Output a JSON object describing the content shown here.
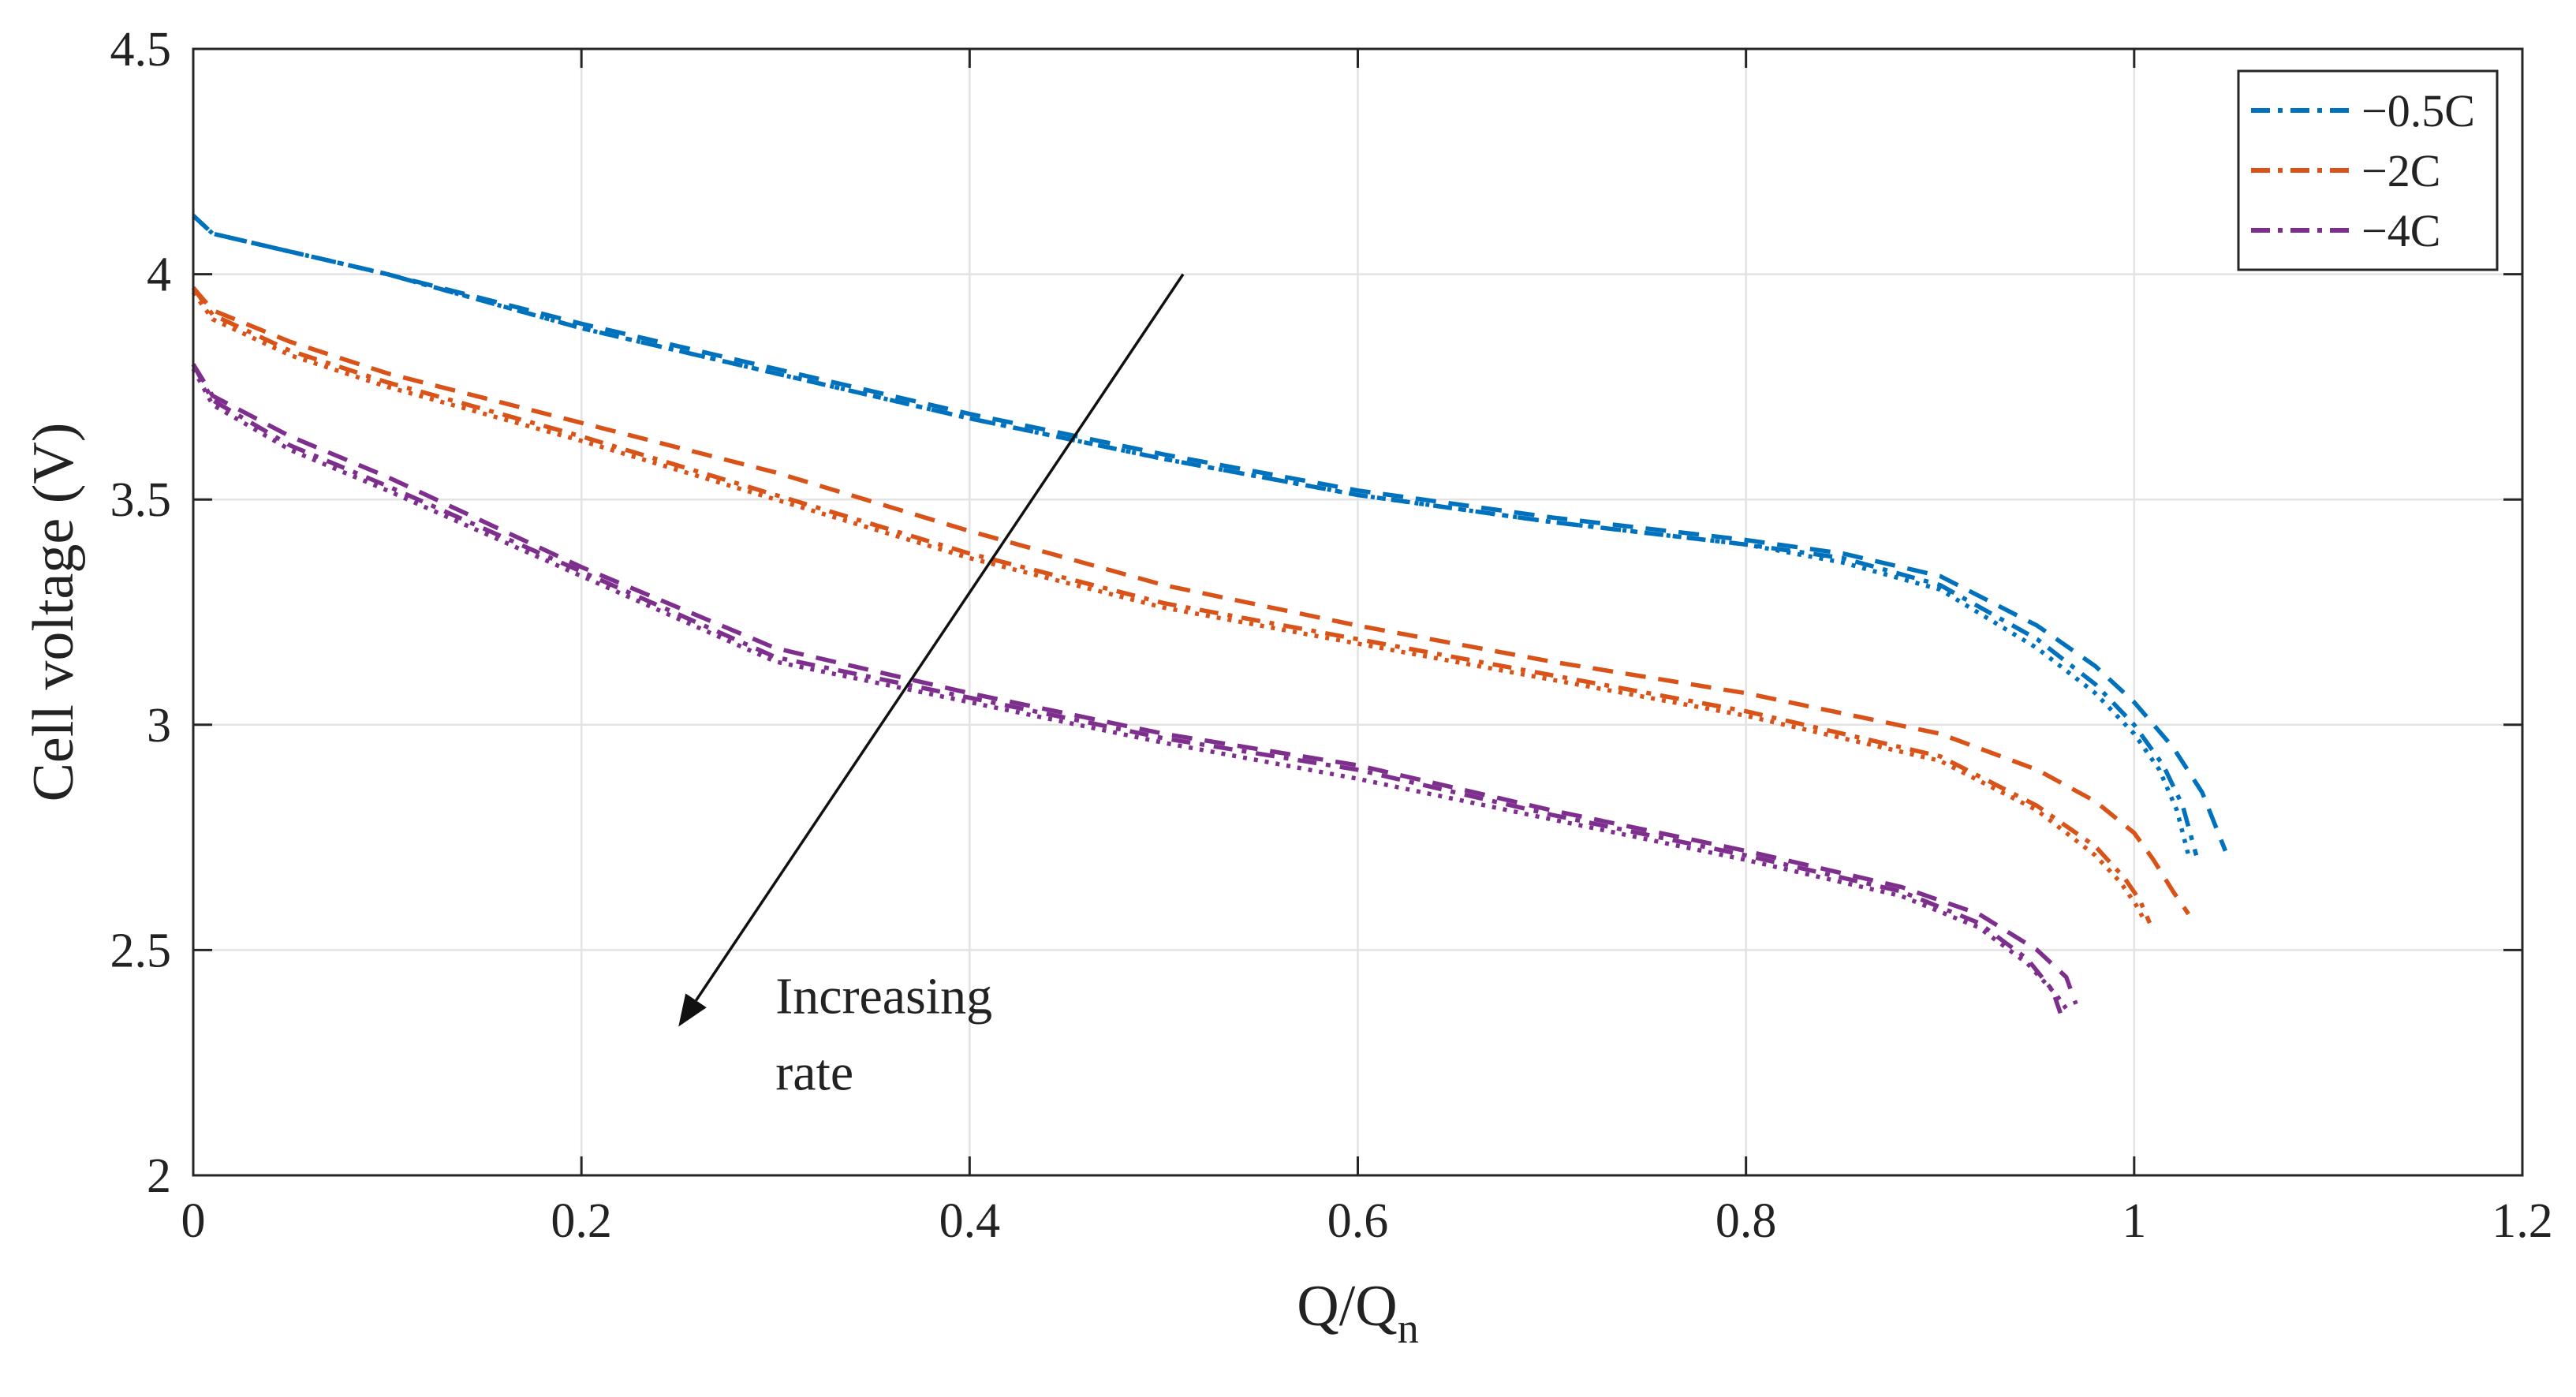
{
  "chart_data": {
    "type": "line",
    "xlabel": "Q/Q",
    "xlabel_subscript": "n",
    "ylabel": "Cell voltage (V)",
    "xlim": [
      0,
      1.2
    ],
    "ylim": [
      2,
      4.5
    ],
    "xticks": [
      0,
      0.2,
      0.4,
      0.6,
      0.8,
      1,
      1.2
    ],
    "xtick_labels": [
      "0",
      "0.2",
      "0.4",
      "0.6",
      "0.8",
      "1",
      "1.2"
    ],
    "yticks": [
      2,
      2.5,
      3,
      3.5,
      4,
      4.5
    ],
    "ytick_labels": [
      "2",
      "2.5",
      "3",
      "3.5",
      "4",
      "4.5"
    ],
    "grid": true,
    "legend_position": "top-right",
    "annotation": {
      "lines": [
        "Increasing",
        "rate"
      ],
      "arrow_from": [
        0.51,
        4.0
      ],
      "arrow_to": [
        0.25,
        2.33
      ]
    },
    "series": [
      {
        "name": "−0.5C",
        "color": "#0072bd",
        "variants": [
          {
            "style": "dashed",
            "points": [
              [
                0,
                4.13
              ],
              [
                0.01,
                4.09
              ],
              [
                0.05,
                4.05
              ],
              [
                0.1,
                4.0
              ],
              [
                0.2,
                3.89
              ],
              [
                0.3,
                3.79
              ],
              [
                0.4,
                3.69
              ],
              [
                0.5,
                3.6
              ],
              [
                0.6,
                3.52
              ],
              [
                0.7,
                3.46
              ],
              [
                0.8,
                3.41
              ],
              [
                0.85,
                3.38
              ],
              [
                0.9,
                3.33
              ],
              [
                0.95,
                3.22
              ],
              [
                0.98,
                3.13
              ],
              [
                1.0,
                3.05
              ],
              [
                1.02,
                2.95
              ],
              [
                1.035,
                2.85
              ],
              [
                1.047,
                2.72
              ]
            ]
          },
          {
            "style": "dash-dot",
            "points": [
              [
                0,
                4.13
              ],
              [
                0.01,
                4.09
              ],
              [
                0.05,
                4.05
              ],
              [
                0.1,
                4.0
              ],
              [
                0.2,
                3.88
              ],
              [
                0.3,
                3.78
              ],
              [
                0.4,
                3.68
              ],
              [
                0.5,
                3.59
              ],
              [
                0.6,
                3.51
              ],
              [
                0.7,
                3.45
              ],
              [
                0.8,
                3.4
              ],
              [
                0.85,
                3.37
              ],
              [
                0.9,
                3.31
              ],
              [
                0.95,
                3.19
              ],
              [
                0.98,
                3.09
              ],
              [
                1.0,
                3.0
              ],
              [
                1.015,
                2.91
              ],
              [
                1.025,
                2.82
              ],
              [
                1.032,
                2.71
              ]
            ]
          },
          {
            "style": "dotted",
            "points": [
              [
                0,
                4.13
              ],
              [
                0.01,
                4.09
              ],
              [
                0.05,
                4.05
              ],
              [
                0.1,
                4.0
              ],
              [
                0.2,
                3.88
              ],
              [
                0.3,
                3.78
              ],
              [
                0.4,
                3.68
              ],
              [
                0.5,
                3.59
              ],
              [
                0.6,
                3.51
              ],
              [
                0.7,
                3.45
              ],
              [
                0.8,
                3.4
              ],
              [
                0.85,
                3.36
              ],
              [
                0.9,
                3.3
              ],
              [
                0.95,
                3.17
              ],
              [
                0.98,
                3.07
              ],
              [
                1.0,
                2.98
              ],
              [
                1.013,
                2.9
              ],
              [
                1.022,
                2.81
              ],
              [
                1.028,
                2.71
              ]
            ]
          }
        ]
      },
      {
        "name": "−2C",
        "color": "#d95319",
        "variants": [
          {
            "style": "dashed",
            "points": [
              [
                0,
                3.97
              ],
              [
                0.01,
                3.92
              ],
              [
                0.05,
                3.85
              ],
              [
                0.1,
                3.78
              ],
              [
                0.2,
                3.67
              ],
              [
                0.3,
                3.56
              ],
              [
                0.4,
                3.43
              ],
              [
                0.5,
                3.31
              ],
              [
                0.6,
                3.22
              ],
              [
                0.7,
                3.14
              ],
              [
                0.8,
                3.07
              ],
              [
                0.9,
                2.98
              ],
              [
                0.95,
                2.9
              ],
              [
                0.98,
                2.83
              ],
              [
                1.0,
                2.76
              ],
              [
                1.01,
                2.7
              ],
              [
                1.02,
                2.63
              ],
              [
                1.028,
                2.58
              ]
            ]
          },
          {
            "style": "dash-dot",
            "points": [
              [
                0,
                3.97
              ],
              [
                0.01,
                3.91
              ],
              [
                0.05,
                3.83
              ],
              [
                0.1,
                3.76
              ],
              [
                0.2,
                3.64
              ],
              [
                0.3,
                3.51
              ],
              [
                0.4,
                3.38
              ],
              [
                0.5,
                3.27
              ],
              [
                0.6,
                3.19
              ],
              [
                0.7,
                3.11
              ],
              [
                0.8,
                3.03
              ],
              [
                0.9,
                2.93
              ],
              [
                0.95,
                2.82
              ],
              [
                0.98,
                2.73
              ],
              [
                0.995,
                2.66
              ],
              [
                1.003,
                2.61
              ],
              [
                1.008,
                2.56
              ]
            ]
          },
          {
            "style": "dotted",
            "points": [
              [
                0,
                3.96
              ],
              [
                0.01,
                3.9
              ],
              [
                0.05,
                3.82
              ],
              [
                0.1,
                3.75
              ],
              [
                0.2,
                3.63
              ],
              [
                0.3,
                3.5
              ],
              [
                0.4,
                3.37
              ],
              [
                0.5,
                3.26
              ],
              [
                0.6,
                3.18
              ],
              [
                0.7,
                3.1
              ],
              [
                0.8,
                3.02
              ],
              [
                0.9,
                2.92
              ],
              [
                0.95,
                2.81
              ],
              [
                0.98,
                2.71
              ],
              [
                0.993,
                2.65
              ],
              [
                1.001,
                2.6
              ],
              [
                1.006,
                2.56
              ]
            ]
          }
        ]
      },
      {
        "name": "−4C",
        "color": "#7e2f8e",
        "variants": [
          {
            "style": "dashed",
            "points": [
              [
                0,
                3.8
              ],
              [
                0.01,
                3.73
              ],
              [
                0.05,
                3.64
              ],
              [
                0.1,
                3.55
              ],
              [
                0.2,
                3.35
              ],
              [
                0.3,
                3.17
              ],
              [
                0.4,
                3.07
              ],
              [
                0.5,
                2.98
              ],
              [
                0.6,
                2.91
              ],
              [
                0.7,
                2.81
              ],
              [
                0.8,
                2.72
              ],
              [
                0.88,
                2.64
              ],
              [
                0.92,
                2.58
              ],
              [
                0.95,
                2.5
              ],
              [
                0.965,
                2.44
              ],
              [
                0.97,
                2.38
              ]
            ]
          },
          {
            "style": "dash-dot",
            "points": [
              [
                0,
                3.8
              ],
              [
                0.01,
                3.72
              ],
              [
                0.05,
                3.62
              ],
              [
                0.1,
                3.53
              ],
              [
                0.2,
                3.34
              ],
              [
                0.3,
                3.15
              ],
              [
                0.4,
                3.06
              ],
              [
                0.5,
                2.97
              ],
              [
                0.6,
                2.9
              ],
              [
                0.7,
                2.8
              ],
              [
                0.8,
                2.71
              ],
              [
                0.88,
                2.63
              ],
              [
                0.92,
                2.56
              ],
              [
                0.945,
                2.48
              ],
              [
                0.958,
                2.41
              ],
              [
                0.962,
                2.36
              ]
            ]
          },
          {
            "style": "dotted",
            "points": [
              [
                0,
                3.79
              ],
              [
                0.01,
                3.71
              ],
              [
                0.05,
                3.61
              ],
              [
                0.1,
                3.52
              ],
              [
                0.2,
                3.33
              ],
              [
                0.3,
                3.14
              ],
              [
                0.4,
                3.05
              ],
              [
                0.5,
                2.96
              ],
              [
                0.6,
                2.88
              ],
              [
                0.7,
                2.79
              ],
              [
                0.8,
                2.7
              ],
              [
                0.88,
                2.62
              ],
              [
                0.92,
                2.55
              ],
              [
                0.945,
                2.47
              ],
              [
                0.96,
                2.4
              ],
              [
                0.965,
                2.37
              ]
            ]
          }
        ]
      }
    ]
  }
}
